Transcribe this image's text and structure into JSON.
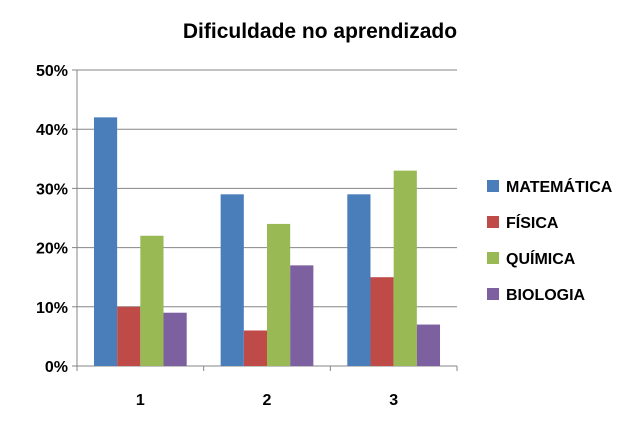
{
  "chart_data": {
    "type": "bar",
    "title": "Dificuldade no aprendizado",
    "xlabel": "",
    "ylabel": "",
    "categories": [
      "1",
      "2",
      "3"
    ],
    "series": [
      {
        "name": "MATEMÁTICA",
        "values": [
          42,
          29,
          29
        ],
        "color": "#4a7ebb"
      },
      {
        "name": "FÍSICA",
        "values": [
          10,
          6,
          15
        ],
        "color": "#be4b48"
      },
      {
        "name": "QUÍMICA",
        "values": [
          22,
          24,
          33
        ],
        "color": "#98b954"
      },
      {
        "name": "BIOLOGIA",
        "values": [
          9,
          17,
          7
        ],
        "color": "#7d60a0"
      }
    ],
    "ylim": [
      0,
      50
    ],
    "yticks": [
      0,
      10,
      20,
      30,
      40,
      50
    ],
    "ytick_labels": [
      "0%",
      "10%",
      "20%",
      "30%",
      "40%",
      "50%"
    ],
    "value_unit": "%",
    "grid": true,
    "legend_position": "right"
  }
}
